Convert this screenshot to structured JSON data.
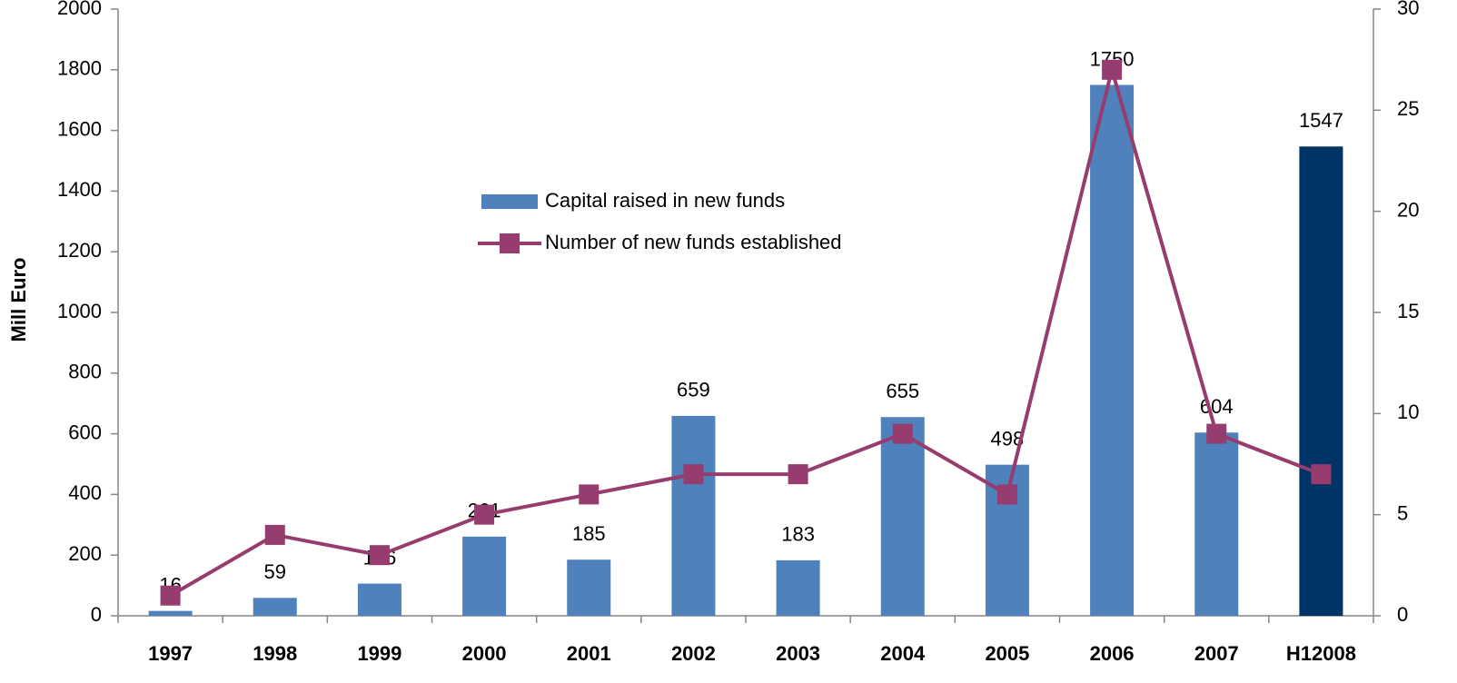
{
  "chart_data": {
    "type": "bar-line",
    "y_label": "Mill Euro",
    "categories": [
      "1997",
      "1998",
      "1999",
      "2000",
      "2001",
      "2002",
      "2003",
      "2004",
      "2005",
      "2006",
      "2007",
      "H12008"
    ],
    "series": [
      {
        "name": "Capital raised in new funds",
        "type": "bar",
        "color": "#4f81bd",
        "colors": [
          "#4f81bd",
          "#4f81bd",
          "#4f81bd",
          "#4f81bd",
          "#4f81bd",
          "#4f81bd",
          "#4f81bd",
          "#4f81bd",
          "#4f81bd",
          "#4f81bd",
          "#4f81bd",
          "#003366"
        ],
        "values": [
          16,
          59,
          106,
          261,
          185,
          659,
          183,
          655,
          498,
          1750,
          604,
          1547
        ]
      },
      {
        "name": "Number of new funds established",
        "type": "line",
        "axis": "y2",
        "color": "#963c6e",
        "values": [
          1,
          4,
          3,
          5,
          6,
          7,
          7,
          9,
          6,
          27,
          9,
          7
        ]
      }
    ],
    "ylim": [
      0,
      2000
    ],
    "yticks": [
      0,
      200,
      400,
      600,
      800,
      1000,
      1200,
      1400,
      1600,
      1800,
      2000
    ],
    "y2lim": [
      0,
      30
    ],
    "y2ticks": [
      0,
      5,
      10,
      15,
      20,
      25,
      30
    ],
    "grid": false
  }
}
